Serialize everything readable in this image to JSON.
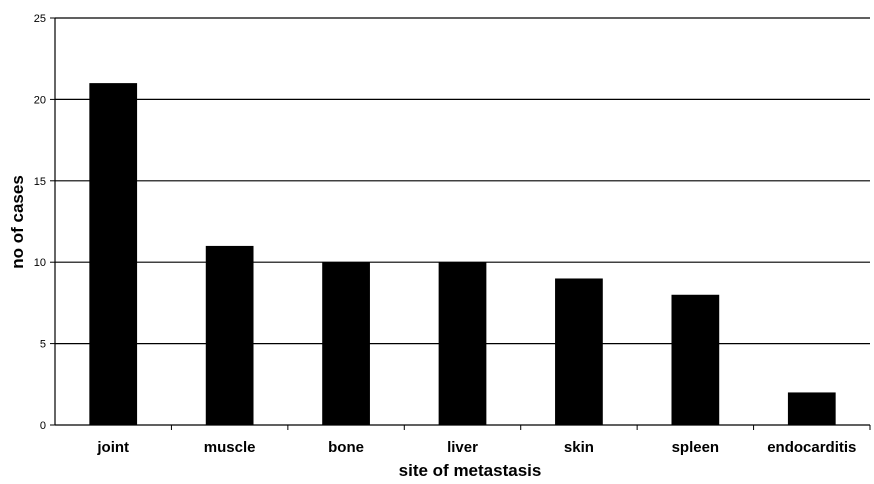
{
  "chart_data": {
    "type": "bar",
    "categories": [
      "joint",
      "muscle",
      "bone",
      "liver",
      "skin",
      "spleen",
      "endocarditis"
    ],
    "values": [
      21,
      11,
      10,
      10,
      9,
      8,
      2
    ],
    "title": "",
    "xlabel": "site of metastasis",
    "ylabel": "no of cases",
    "ylim": [
      0,
      25
    ],
    "yticks": [
      0,
      5,
      10,
      15,
      20,
      25
    ],
    "grid": true,
    "bar_color": "#000000",
    "grid_color": "#000000"
  }
}
